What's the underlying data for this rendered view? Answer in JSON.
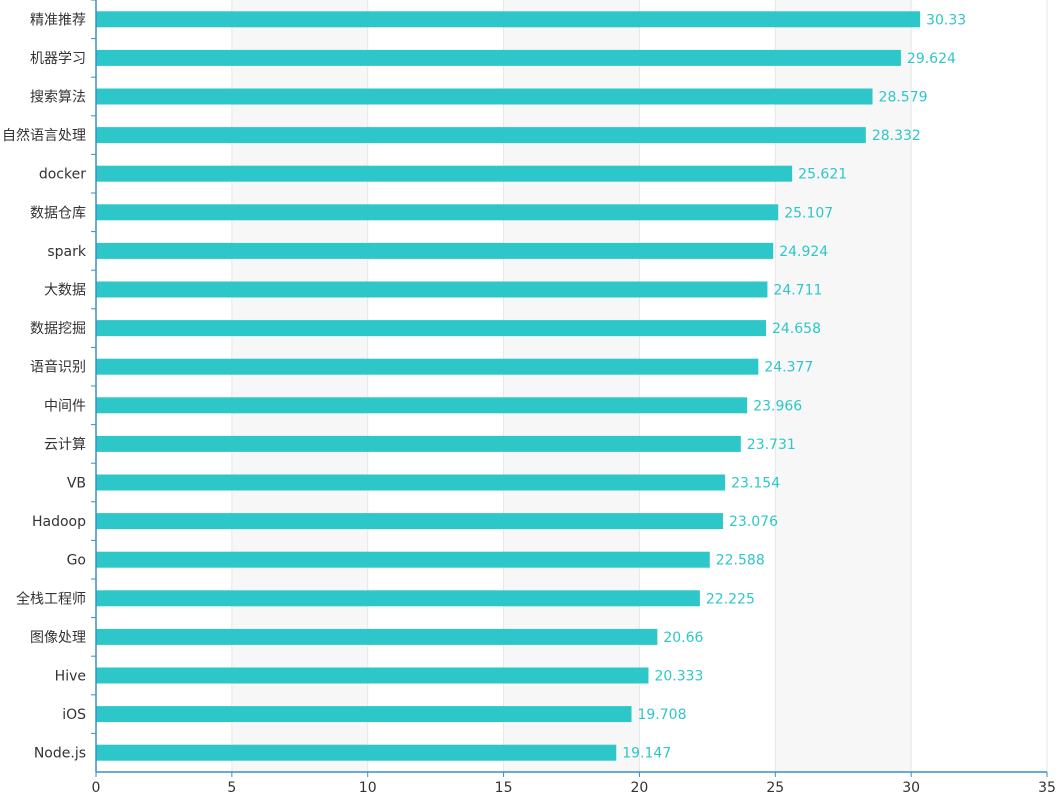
{
  "chart_data": {
    "type": "bar",
    "orientation": "horizontal",
    "categories": [
      "Node.js",
      "iOS",
      "Hive",
      "图像处理",
      "全栈工程师",
      "Go",
      "Hadoop",
      "VB",
      "云计算",
      "中间件",
      "语音识别",
      "数据挖掘",
      "大数据",
      "spark",
      "数据仓库",
      "docker",
      "自然语言处理",
      "搜索算法",
      "机器学习",
      "精准推荐"
    ],
    "values": [
      19.147,
      19.708,
      20.333,
      20.66,
      22.225,
      22.588,
      23.076,
      23.154,
      23.731,
      23.966,
      24.377,
      24.658,
      24.711,
      24.924,
      25.107,
      25.621,
      28.332,
      28.579,
      29.624,
      30.33
    ],
    "xlim": [
      0,
      35
    ],
    "xticks": [
      0,
      5,
      10,
      15,
      20,
      25,
      30,
      35
    ],
    "grid": true,
    "data_labels": true,
    "title": "",
    "xlabel": "",
    "ylabel": ""
  },
  "colors": {
    "bar": "#2ec7c9",
    "label": "#2ec7c9",
    "axis": "#3a8ec5",
    "band": "#f7f7f7",
    "gridline": "#e6e6e6",
    "text": "#333333"
  }
}
